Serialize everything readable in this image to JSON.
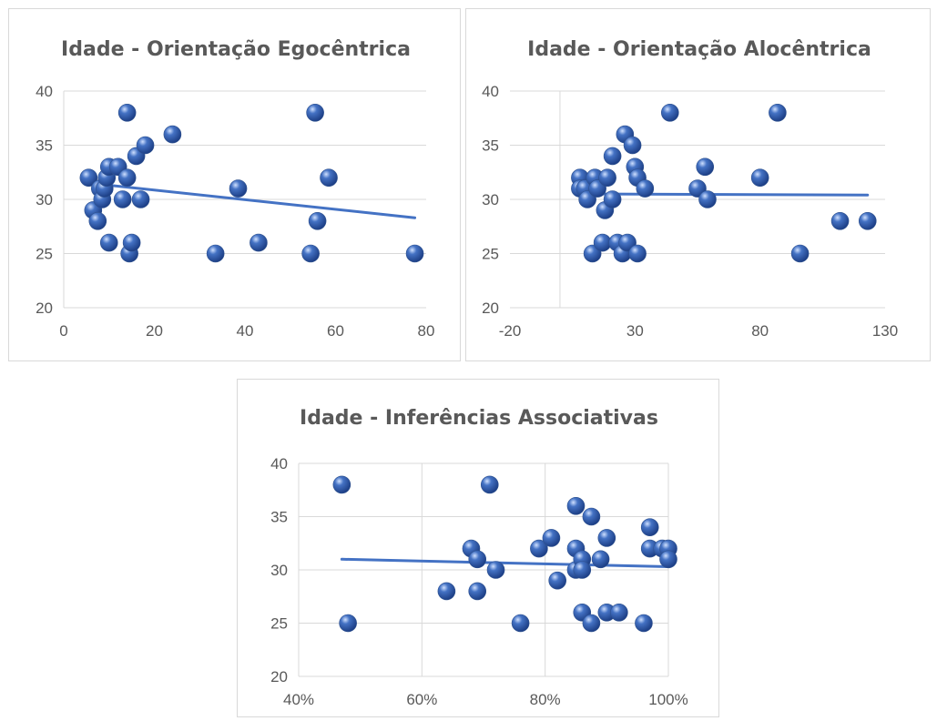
{
  "chart_data": [
    {
      "type": "scatter",
      "title": "Idade - Orientação Egocêntrica",
      "xlabel": "",
      "ylabel": "",
      "xlim": [
        0,
        80
      ],
      "ylim": [
        20,
        40
      ],
      "x_ticks": [
        0,
        20,
        40,
        60,
        80
      ],
      "y_ticks": [
        20,
        25,
        30,
        35,
        40
      ],
      "x_tick_labels": [
        "0",
        "20",
        "40",
        "60",
        "80"
      ],
      "y_tick_labels": [
        "20",
        "25",
        "30",
        "35",
        "40"
      ],
      "grid": "horizontal",
      "legend": "none",
      "trendline": {
        "x": [
          5.5,
          77.5
        ],
        "y": [
          31.5,
          28.3
        ]
      },
      "points": [
        {
          "x": 5.5,
          "y": 32
        },
        {
          "x": 6.5,
          "y": 29
        },
        {
          "x": 7.5,
          "y": 28
        },
        {
          "x": 8,
          "y": 31
        },
        {
          "x": 8.5,
          "y": 30
        },
        {
          "x": 9,
          "y": 31
        },
        {
          "x": 9.5,
          "y": 32
        },
        {
          "x": 10,
          "y": 33
        },
        {
          "x": 10,
          "y": 26
        },
        {
          "x": 12,
          "y": 33
        },
        {
          "x": 13,
          "y": 30
        },
        {
          "x": 14,
          "y": 32
        },
        {
          "x": 14,
          "y": 38
        },
        {
          "x": 14.5,
          "y": 25
        },
        {
          "x": 15,
          "y": 26
        },
        {
          "x": 16,
          "y": 34
        },
        {
          "x": 17,
          "y": 30
        },
        {
          "x": 18,
          "y": 35
        },
        {
          "x": 24,
          "y": 36
        },
        {
          "x": 33.5,
          "y": 25
        },
        {
          "x": 38.5,
          "y": 31
        },
        {
          "x": 43,
          "y": 26
        },
        {
          "x": 54.5,
          "y": 25
        },
        {
          "x": 55.5,
          "y": 38
        },
        {
          "x": 56,
          "y": 28
        },
        {
          "x": 58.5,
          "y": 32
        },
        {
          "x": 77.5,
          "y": 25
        }
      ]
    },
    {
      "type": "scatter",
      "title": "Idade - Orientação Alocêntrica",
      "xlabel": "",
      "ylabel": "",
      "xlim": [
        -20,
        130
      ],
      "ylim": [
        20,
        40
      ],
      "x_ticks": [
        -20,
        30,
        80,
        130
      ],
      "y_ticks": [
        20,
        25,
        30,
        35,
        40
      ],
      "x_tick_labels": [
        "-20",
        "30",
        "80",
        "130"
      ],
      "y_tick_labels": [
        "20",
        "25",
        "30",
        "35",
        "40"
      ],
      "grid": "horizontal",
      "legend": "none",
      "trendline": {
        "x": [
          7,
          123
        ],
        "y": [
          30.5,
          30.4
        ]
      },
      "points": [
        {
          "x": 8,
          "y": 32
        },
        {
          "x": 8,
          "y": 31
        },
        {
          "x": 10,
          "y": 31
        },
        {
          "x": 11,
          "y": 30
        },
        {
          "x": 13,
          "y": 25
        },
        {
          "x": 14,
          "y": 32
        },
        {
          "x": 15,
          "y": 31
        },
        {
          "x": 17,
          "y": 26
        },
        {
          "x": 18,
          "y": 29
        },
        {
          "x": 19,
          "y": 32
        },
        {
          "x": 21,
          "y": 34
        },
        {
          "x": 21,
          "y": 30
        },
        {
          "x": 23,
          "y": 26
        },
        {
          "x": 25,
          "y": 25
        },
        {
          "x": 26,
          "y": 36
        },
        {
          "x": 27,
          "y": 26
        },
        {
          "x": 29,
          "y": 35
        },
        {
          "x": 30,
          "y": 33
        },
        {
          "x": 31,
          "y": 32
        },
        {
          "x": 31,
          "y": 25
        },
        {
          "x": 34,
          "y": 31
        },
        {
          "x": 44,
          "y": 38
        },
        {
          "x": 55,
          "y": 31
        },
        {
          "x": 58,
          "y": 33
        },
        {
          "x": 59,
          "y": 30
        },
        {
          "x": 80,
          "y": 32
        },
        {
          "x": 87,
          "y": 38
        },
        {
          "x": 96,
          "y": 25
        },
        {
          "x": 112,
          "y": 28
        },
        {
          "x": 123,
          "y": 28
        }
      ]
    },
    {
      "type": "scatter",
      "title": "Idade - Inferências Associativas",
      "xlabel": "",
      "ylabel": "",
      "xlim": [
        0.4,
        1.0
      ],
      "ylim": [
        20,
        40
      ],
      "x_ticks": [
        0.4,
        0.6,
        0.8,
        1.0
      ],
      "y_ticks": [
        20,
        25,
        30,
        35,
        40
      ],
      "x_tick_labels": [
        "40%",
        "60%",
        "80%",
        "100%"
      ],
      "y_tick_labels": [
        "20",
        "25",
        "30",
        "35",
        "40"
      ],
      "grid": "both",
      "legend": "none",
      "trendline": {
        "x": [
          0.47,
          1.0
        ],
        "y": [
          31.0,
          30.3
        ]
      },
      "points": [
        {
          "x": 0.47,
          "y": 38
        },
        {
          "x": 0.48,
          "y": 25
        },
        {
          "x": 0.64,
          "y": 28
        },
        {
          "x": 0.68,
          "y": 32
        },
        {
          "x": 0.69,
          "y": 31
        },
        {
          "x": 0.69,
          "y": 28
        },
        {
          "x": 0.71,
          "y": 38
        },
        {
          "x": 0.72,
          "y": 30
        },
        {
          "x": 0.76,
          "y": 25
        },
        {
          "x": 0.79,
          "y": 32
        },
        {
          "x": 0.81,
          "y": 33
        },
        {
          "x": 0.82,
          "y": 29
        },
        {
          "x": 0.85,
          "y": 36
        },
        {
          "x": 0.85,
          "y": 32
        },
        {
          "x": 0.85,
          "y": 30
        },
        {
          "x": 0.86,
          "y": 31
        },
        {
          "x": 0.86,
          "y": 30
        },
        {
          "x": 0.86,
          "y": 26
        },
        {
          "x": 0.875,
          "y": 35
        },
        {
          "x": 0.875,
          "y": 25
        },
        {
          "x": 0.89,
          "y": 31
        },
        {
          "x": 0.9,
          "y": 33
        },
        {
          "x": 0.9,
          "y": 26
        },
        {
          "x": 0.92,
          "y": 26
        },
        {
          "x": 0.96,
          "y": 25
        },
        {
          "x": 0.97,
          "y": 34
        },
        {
          "x": 0.97,
          "y": 32
        },
        {
          "x": 0.99,
          "y": 32
        },
        {
          "x": 1.0,
          "y": 32
        },
        {
          "x": 1.0,
          "y": 31
        }
      ]
    }
  ],
  "colors": {
    "marker": "#4472c4",
    "trendline": "#4472c4",
    "gridline": "#d9d9d9",
    "text": "#595959"
  }
}
